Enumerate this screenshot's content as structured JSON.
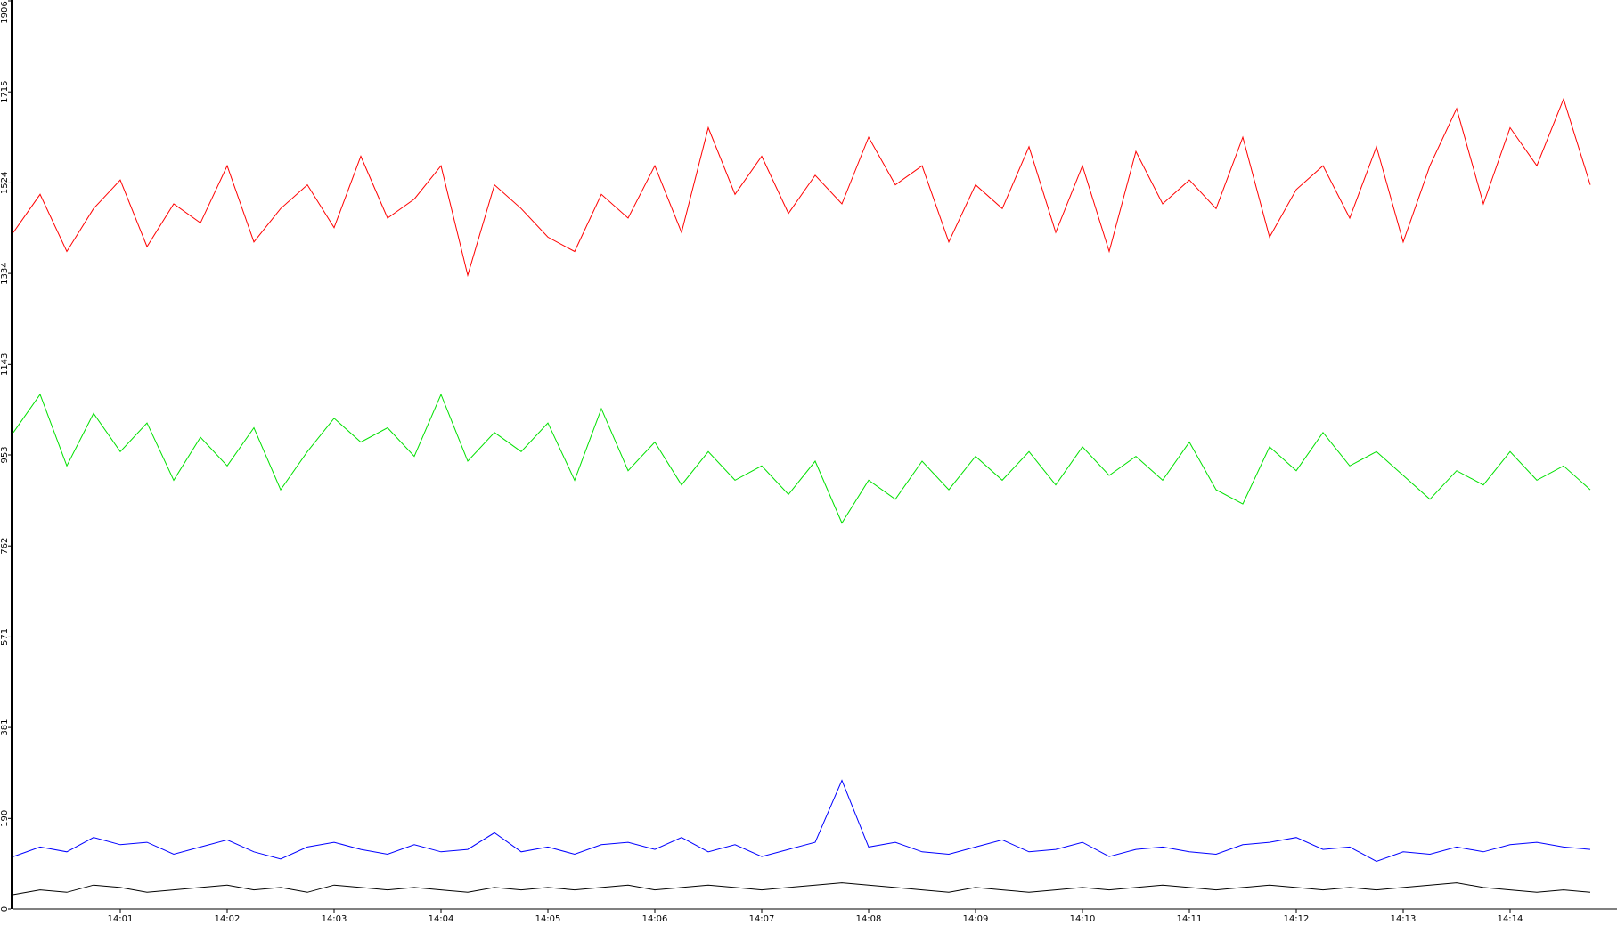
{
  "chart_data": {
    "type": "line",
    "categories": [
      null,
      null,
      null,
      null,
      "14:01",
      null,
      null,
      null,
      "14:02",
      null,
      null,
      null,
      "14:03",
      null,
      null,
      null,
      "14:04",
      null,
      null,
      null,
      "14:05",
      null,
      null,
      null,
      "14:06",
      null,
      null,
      null,
      "14:07",
      null,
      null,
      null,
      "14:08",
      null,
      null,
      null,
      "14:09",
      null,
      null,
      null,
      "14:10",
      null,
      null,
      null,
      "14:11",
      null,
      null,
      null,
      "14:12",
      null,
      null,
      null,
      "14:13",
      null,
      null,
      null,
      "14:14",
      null,
      null,
      null
    ],
    "ylim": [
      0,
      1906
    ],
    "yticks": [
      0,
      190,
      381,
      571,
      762,
      953,
      1143,
      1334,
      1524,
      1715,
      1906
    ],
    "series": [
      {
        "name": "red",
        "color": "#ff0000",
        "values": [
          1420,
          1500,
          1380,
          1470,
          1530,
          1390,
          1480,
          1440,
          1560,
          1400,
          1470,
          1520,
          1430,
          1580,
          1450,
          1490,
          1560,
          1330,
          1520,
          1470,
          1410,
          1380,
          1500,
          1450,
          1560,
          1420,
          1640,
          1500,
          1580,
          1460,
          1540,
          1480,
          1620,
          1520,
          1560,
          1400,
          1520,
          1470,
          1600,
          1420,
          1560,
          1380,
          1590,
          1480,
          1530,
          1470,
          1620,
          1410,
          1510,
          1560,
          1450,
          1600,
          1400,
          1560,
          1680,
          1480,
          1640,
          1560,
          1700,
          1520
        ]
      },
      {
        "name": "green",
        "color": "#00e000",
        "values": [
          1000,
          1080,
          930,
          1040,
          960,
          1020,
          900,
          990,
          930,
          1010,
          880,
          960,
          1030,
          980,
          1010,
          950,
          1080,
          940,
          1000,
          960,
          1020,
          900,
          1050,
          920,
          980,
          890,
          960,
          900,
          930,
          870,
          940,
          810,
          900,
          860,
          940,
          880,
          950,
          900,
          960,
          890,
          970,
          910,
          950,
          900,
          980,
          880,
          850,
          970,
          920,
          1000,
          930,
          960,
          910,
          860,
          920,
          890,
          960,
          900,
          930,
          880
        ]
      },
      {
        "name": "blue",
        "color": "#0000ff",
        "values": [
          110,
          130,
          120,
          150,
          135,
          140,
          115,
          130,
          145,
          120,
          105,
          130,
          140,
          125,
          115,
          135,
          120,
          125,
          160,
          120,
          130,
          115,
          135,
          140,
          125,
          150,
          120,
          135,
          110,
          125,
          140,
          270,
          130,
          140,
          120,
          115,
          130,
          145,
          120,
          125,
          140,
          110,
          125,
          130,
          120,
          115,
          135,
          140,
          150,
          125,
          130,
          100,
          120,
          115,
          130,
          120,
          135,
          140,
          130,
          125
        ]
      },
      {
        "name": "black",
        "color": "#000000",
        "values": [
          30,
          40,
          35,
          50,
          45,
          35,
          40,
          45,
          50,
          40,
          45,
          35,
          50,
          45,
          40,
          45,
          40,
          35,
          45,
          40,
          45,
          40,
          45,
          50,
          40,
          45,
          50,
          45,
          40,
          45,
          50,
          55,
          50,
          45,
          40,
          35,
          45,
          40,
          35,
          40,
          45,
          40,
          45,
          50,
          45,
          40,
          45,
          50,
          45,
          40,
          45,
          40,
          45,
          50,
          55,
          45,
          40,
          35,
          40,
          35
        ]
      }
    ]
  }
}
